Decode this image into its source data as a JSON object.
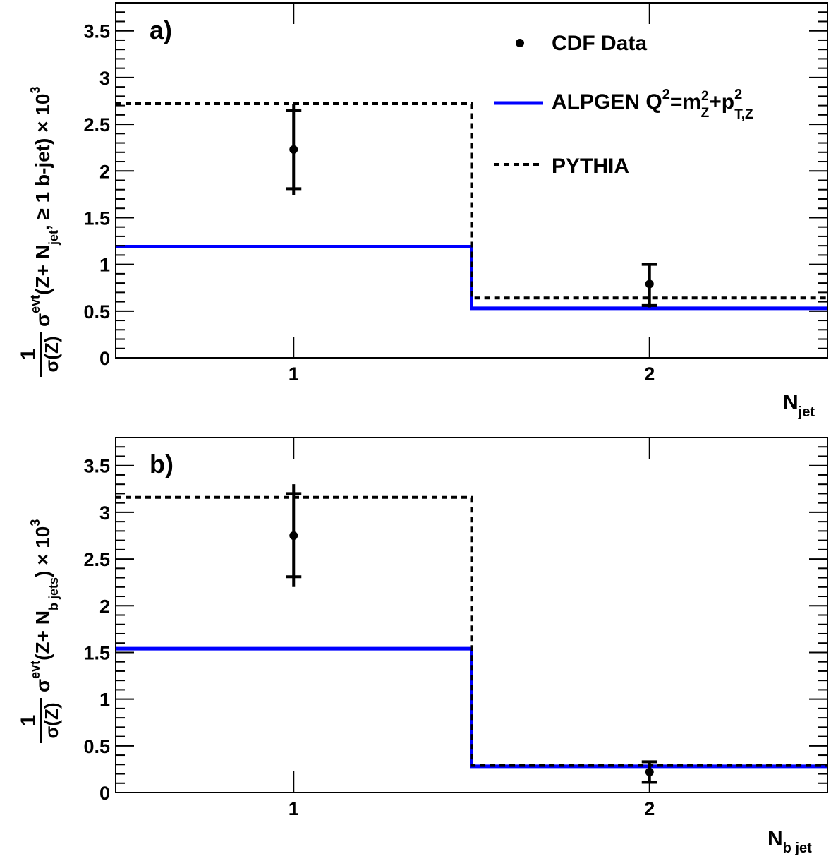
{
  "chart_data": [
    {
      "type": "line",
      "panel_label": "a)",
      "xlabel": "N",
      "xlabel_sub": "jet",
      "ylabel": {
        "frac_num": "1",
        "frac_den": "σ(Z)",
        "sigma": "σ",
        "sup": "evt",
        "mid": "(Z+ N",
        "sub": "jet",
        "tail": ", ≥ 1 b-jet) × 10",
        "exp": "3"
      },
      "xlim": [
        0.5,
        2.5
      ],
      "ylim": [
        0,
        3.8
      ],
      "x_ticks": [
        1,
        2
      ],
      "x_tick_labels": [
        "1",
        "2"
      ],
      "y_ticks": [
        0,
        0.5,
        1,
        1.5,
        2,
        2.5,
        3,
        3.5
      ],
      "y_tick_labels": [
        "0",
        "0.5",
        "1",
        "1.5",
        "2",
        "2.5",
        "3",
        "3.5"
      ],
      "bin_edges": [
        0.5,
        1.5,
        2.5
      ],
      "series": [
        {
          "name": "CDF Data",
          "kind": "points",
          "x": [
            1,
            2
          ],
          "y": [
            2.23,
            0.79
          ],
          "err_stat_low": [
            1.81,
            0.56
          ],
          "err_stat_high": [
            2.65,
            1.0
          ],
          "err_tot_low": [
            1.74,
            0.54
          ],
          "err_tot_high": [
            2.72,
            1.02
          ]
        },
        {
          "name": "ALPGEN",
          "kind": "histogram",
          "values": [
            1.19,
            0.53
          ],
          "color": "#0000ff"
        },
        {
          "name": "PYTHIA",
          "kind": "histogram",
          "values": [
            2.72,
            0.64
          ],
          "color": "#000000",
          "style": "dashed"
        }
      ]
    },
    {
      "type": "line",
      "panel_label": "b)",
      "xlabel": "N",
      "xlabel_sub": "b jet",
      "ylabel": {
        "frac_num": "1",
        "frac_den": "σ(Z)",
        "sigma": "σ",
        "sup": "evt",
        "mid": "(Z+ N",
        "sub": "b jets",
        "tail": ") × 10",
        "exp": "3"
      },
      "xlim": [
        0.5,
        2.5
      ],
      "ylim": [
        0,
        3.8
      ],
      "x_ticks": [
        1,
        2
      ],
      "x_tick_labels": [
        "1",
        "2"
      ],
      "y_ticks": [
        0,
        0.5,
        1,
        1.5,
        2,
        2.5,
        3,
        3.5
      ],
      "y_tick_labels": [
        "0",
        "0.5",
        "1",
        "1.5",
        "2",
        "2.5",
        "3",
        "3.5"
      ],
      "bin_edges": [
        0.5,
        1.5,
        2.5
      ],
      "series": [
        {
          "name": "CDF Data",
          "kind": "points",
          "x": [
            1,
            2
          ],
          "y": [
            2.75,
            0.22
          ],
          "err_stat_low": [
            2.31,
            0.11
          ],
          "err_stat_high": [
            3.2,
            0.33
          ],
          "err_tot_low": [
            2.2,
            0.1
          ],
          "err_tot_high": [
            3.3,
            0.34
          ]
        },
        {
          "name": "ALPGEN",
          "kind": "histogram",
          "values": [
            1.54,
            0.28
          ],
          "color": "#0000ff"
        },
        {
          "name": "PYTHIA",
          "kind": "histogram",
          "values": [
            3.16,
            0.29
          ],
          "color": "#000000",
          "style": "dashed"
        }
      ]
    }
  ],
  "legend": {
    "data_label": "CDF Data",
    "alpgen": {
      "text": "ALPGEN Q",
      "q_sup": "2",
      "eq": "=m",
      "m_sup": "2",
      "m_sub": "Z",
      "plus": "+p",
      "p_sup": "2",
      "p_sub": "T,Z"
    },
    "pythia_label": "PYTHIA"
  },
  "colors": {
    "alpgen": "#0000ff",
    "pythia": "#000000",
    "data": "#000000",
    "zero_line": "#cc0000",
    "frame": "#000000"
  }
}
